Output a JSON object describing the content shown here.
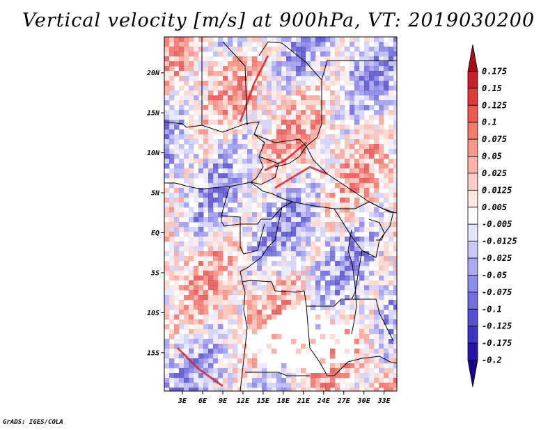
{
  "title": "Vertical velocity [m/s] at 900hPa, VT: 2019030200",
  "credit": "GrADS: IGES/COLA",
  "map": {
    "lat_labels": [
      {
        "label": "20N",
        "lat": 20
      },
      {
        "label": "15N",
        "lat": 15
      },
      {
        "label": "10N",
        "lat": 10
      },
      {
        "label": "5N",
        "lat": 5
      },
      {
        "label": "EQ",
        "lat": 0
      },
      {
        "label": "5S",
        "lat": -5
      },
      {
        "label": "10S",
        "lat": -10
      },
      {
        "label": "15S",
        "lat": -15
      }
    ],
    "lon_labels": [
      {
        "label": "3E",
        "lon": 3
      },
      {
        "label": "6E",
        "lon": 6
      },
      {
        "label": "9E",
        "lon": 9
      },
      {
        "label": "12E",
        "lon": 12
      },
      {
        "label": "15E",
        "lon": 15
      },
      {
        "label": "18E",
        "lon": 18
      },
      {
        "label": "21E",
        "lon": 21
      },
      {
        "label": "24E",
        "lon": 24
      },
      {
        "label": "27E",
        "lon": 27
      },
      {
        "label": "30E",
        "lon": 30
      },
      {
        "label": "33E",
        "lon": 33
      }
    ],
    "lon_range": [
      0.3,
      34.9
    ],
    "lat_range": [
      -19.8,
      24.5
    ]
  },
  "colorbar": {
    "labels": [
      "0.175",
      "0.15",
      "0.125",
      "0.1",
      "0.075",
      "0.05",
      "0.025",
      "0.0125",
      "0.005",
      "-0.005",
      "-0.0125",
      "-0.025",
      "-0.05",
      "-0.075",
      "-0.1",
      "-0.125",
      "-0.175",
      "-0.2"
    ],
    "colors": [
      "#a50f15",
      "#c8202a",
      "#de3c3c",
      "#ee5a52",
      "#f37b6e",
      "#f79a8e",
      "#fab5ab",
      "#fccfc8",
      "#fde7e3",
      "#ffffff",
      "#e5e4fb",
      "#cbc9f7",
      "#aeabf2",
      "#908bea",
      "#736de0",
      "#5850d3",
      "#3f34c2",
      "#2814a8",
      "#18008c"
    ]
  }
}
